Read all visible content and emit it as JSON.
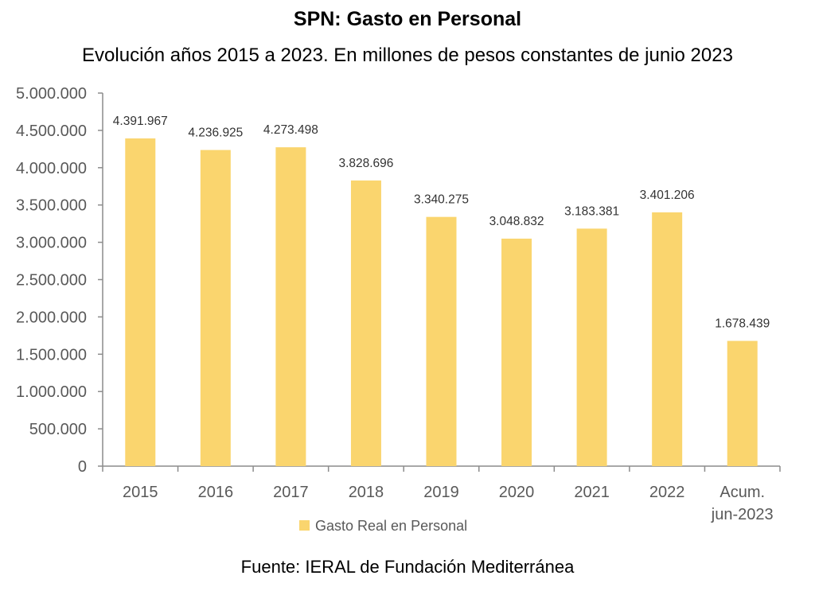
{
  "chart_data": {
    "type": "bar",
    "title": "SPN: Gasto en Personal",
    "subtitle": "Evolución años 2015 a 2023. En millones de pesos constantes de junio 2023",
    "categories": [
      "2015",
      "2016",
      "2017",
      "2018",
      "2019",
      "2020",
      "2021",
      "2022",
      "Acum.\njun-2023"
    ],
    "series": [
      {
        "name": "Gasto Real en Personal",
        "values": [
          4391967,
          4236925,
          4273498,
          3828696,
          3340275,
          3048832,
          3183381,
          3401206,
          1678439
        ],
        "labels": [
          "4.391.967",
          "4.236.925",
          "4.273.498",
          "3.828.696",
          "3.340.275",
          "3.048.832",
          "3.183.381",
          "3.401.206",
          "1.678.439"
        ],
        "color": "#FAD56E"
      }
    ],
    "ylim": [
      0,
      5000000
    ],
    "yticks": [
      0,
      500000,
      1000000,
      1500000,
      2000000,
      2500000,
      3000000,
      3500000,
      4000000,
      4500000,
      5000000
    ],
    "ytick_labels": [
      "0",
      "500.000",
      "1.000.000",
      "1.500.000",
      "2.000.000",
      "2.500.000",
      "3.000.000",
      "3.500.000",
      "4.000.000",
      "4.500.000",
      "5.000.000"
    ],
    "xlabel": "",
    "ylabel": "",
    "grid": false,
    "legend": "bottom",
    "source": "Fuente: IERAL de Fundación Mediterránea"
  }
}
